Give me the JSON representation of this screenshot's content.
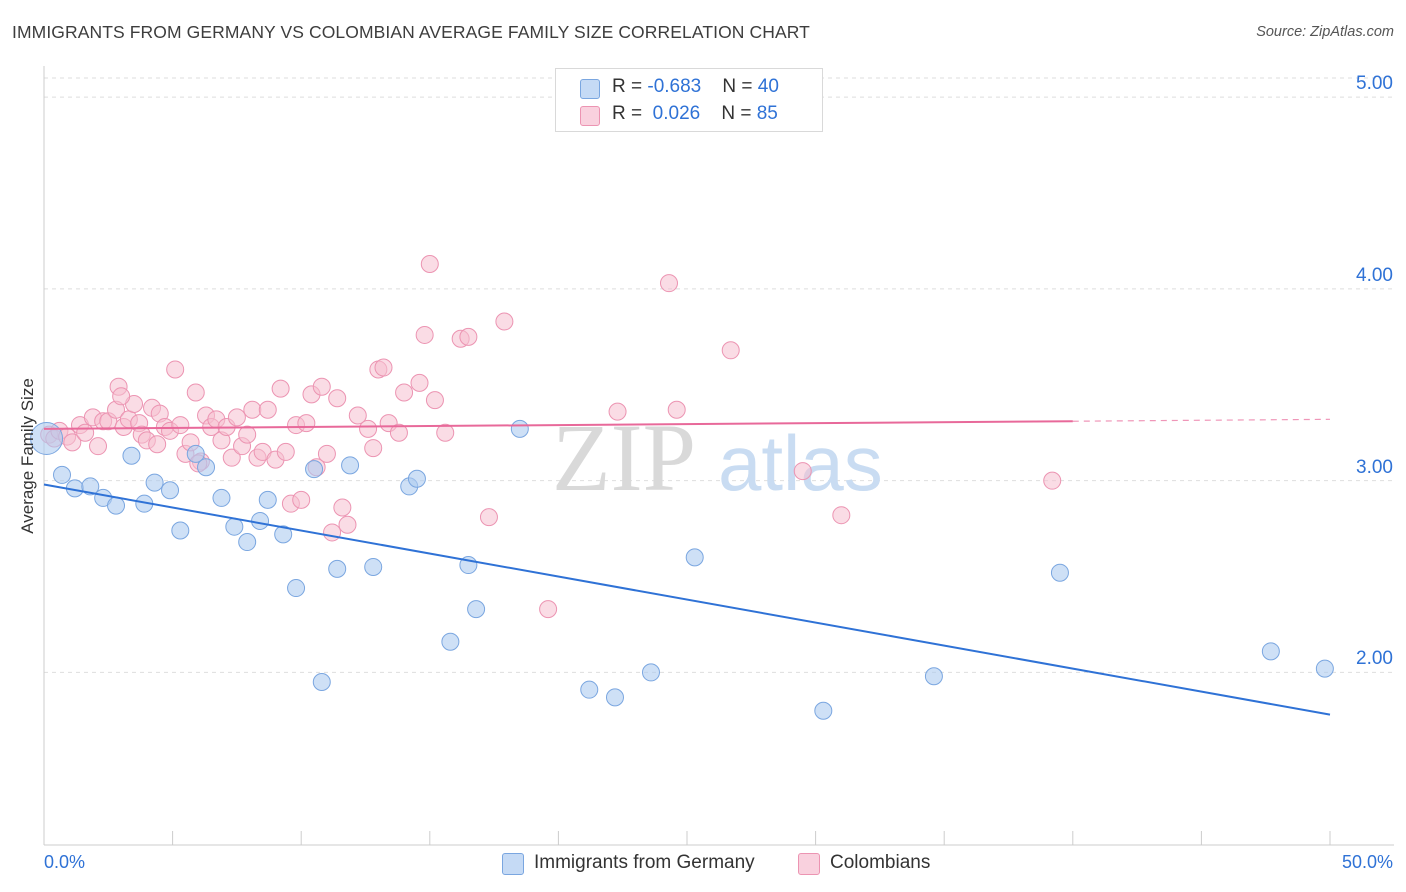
{
  "header": {
    "title": "IMMIGRANTS FROM GERMANY VS COLOMBIAN AVERAGE FAMILY SIZE CORRELATION CHART",
    "source": "Source: ZipAtlas.com"
  },
  "legend": {
    "row1": {
      "r_label": "R = ",
      "r_value": "-0.683",
      "n_label": "N = ",
      "n_value": "40"
    },
    "row2": {
      "r_label": "R = ",
      "r_value": " 0.026",
      "n_label": "N = ",
      "n_value": "85"
    }
  },
  "watermark": {
    "zip": "ZIP",
    "atlas": "atlas"
  },
  "colors": {
    "blue_fill": "#aecbf0",
    "blue_stroke": "#7aa6e0",
    "blue_line": "#2f72d6",
    "pink_fill": "#f6bfd0",
    "pink_stroke": "#ec94b2",
    "pink_line": "#e8699a",
    "grid": "#dedede",
    "axis_text": "#2f72d6"
  },
  "chart_data": {
    "type": "scatter",
    "title": "IMMIGRANTS FROM GERMANY VS COLOMBIAN AVERAGE FAMILY SIZE CORRELATION CHART",
    "xlabel": "",
    "ylabel": "Average Family Size",
    "xlim": [
      0,
      50
    ],
    "ylim": [
      1.1,
      5.1
    ],
    "x_tick_labels": [
      "0.0%",
      "50.0%"
    ],
    "y_ticks": [
      2.0,
      3.0,
      4.0,
      5.0
    ],
    "y_tick_labels": [
      "2.00",
      "3.00",
      "4.00",
      "5.00"
    ],
    "grid": true,
    "legend_position": "top-center",
    "series": [
      {
        "name": "Immigrants from Germany",
        "color": "#aecbf0",
        "r": -0.683,
        "n": 40,
        "trend": {
          "x": [
            0.0,
            50.0
          ],
          "y": [
            2.98,
            1.78
          ]
        },
        "points": [
          {
            "x": 0.1,
            "y": 3.22,
            "big": true
          },
          {
            "x": 0.7,
            "y": 3.03
          },
          {
            "x": 1.2,
            "y": 2.96
          },
          {
            "x": 1.8,
            "y": 2.97
          },
          {
            "x": 2.3,
            "y": 2.91
          },
          {
            "x": 2.8,
            "y": 2.87
          },
          {
            "x": 3.4,
            "y": 3.13
          },
          {
            "x": 3.9,
            "y": 2.88
          },
          {
            "x": 4.3,
            "y": 2.99
          },
          {
            "x": 4.9,
            "y": 2.95
          },
          {
            "x": 5.3,
            "y": 2.74
          },
          {
            "x": 5.9,
            "y": 3.14
          },
          {
            "x": 6.3,
            "y": 3.07
          },
          {
            "x": 6.9,
            "y": 2.91
          },
          {
            "x": 7.4,
            "y": 2.76
          },
          {
            "x": 7.9,
            "y": 2.68
          },
          {
            "x": 8.4,
            "y": 2.79
          },
          {
            "x": 8.7,
            "y": 2.9
          },
          {
            "x": 9.3,
            "y": 2.72
          },
          {
            "x": 9.8,
            "y": 2.44
          },
          {
            "x": 10.5,
            "y": 3.06
          },
          {
            "x": 10.8,
            "y": 1.95
          },
          {
            "x": 11.4,
            "y": 2.54
          },
          {
            "x": 11.9,
            "y": 3.08
          },
          {
            "x": 12.8,
            "y": 2.55
          },
          {
            "x": 14.2,
            "y": 2.97
          },
          {
            "x": 14.5,
            "y": 3.01
          },
          {
            "x": 15.8,
            "y": 2.16
          },
          {
            "x": 16.5,
            "y": 2.56
          },
          {
            "x": 16.8,
            "y": 2.33
          },
          {
            "x": 18.5,
            "y": 3.27
          },
          {
            "x": 21.2,
            "y": 1.91
          },
          {
            "x": 22.2,
            "y": 1.87
          },
          {
            "x": 23.6,
            "y": 2.0
          },
          {
            "x": 25.3,
            "y": 2.6
          },
          {
            "x": 34.6,
            "y": 1.98
          },
          {
            "x": 30.3,
            "y": 1.8
          },
          {
            "x": 39.5,
            "y": 2.52
          },
          {
            "x": 47.7,
            "y": 2.11
          },
          {
            "x": 49.8,
            "y": 2.02
          }
        ]
      },
      {
        "name": "Colombians",
        "color": "#f6bfd0",
        "r": 0.026,
        "n": 85,
        "trend": {
          "x": [
            0.0,
            40.0
          ],
          "y": [
            3.27,
            3.31
          ]
        },
        "trend_dashed_ext": {
          "x": [
            40.0,
            50.0
          ],
          "y": [
            3.31,
            3.32
          ]
        },
        "points": [
          {
            "x": 0.2,
            "y": 3.24
          },
          {
            "x": 0.4,
            "y": 3.22
          },
          {
            "x": 0.6,
            "y": 3.26
          },
          {
            "x": 0.9,
            "y": 3.23
          },
          {
            "x": 1.1,
            "y": 3.2
          },
          {
            "x": 1.4,
            "y": 3.29
          },
          {
            "x": 1.6,
            "y": 3.25
          },
          {
            "x": 1.9,
            "y": 3.33
          },
          {
            "x": 2.1,
            "y": 3.18
          },
          {
            "x": 2.3,
            "y": 3.31
          },
          {
            "x": 2.5,
            "y": 3.31
          },
          {
            "x": 2.8,
            "y": 3.37
          },
          {
            "x": 2.9,
            "y": 3.49
          },
          {
            "x": 3.1,
            "y": 3.28
          },
          {
            "x": 3.3,
            "y": 3.32
          },
          {
            "x": 3.5,
            "y": 3.4
          },
          {
            "x": 3.7,
            "y": 3.3
          },
          {
            "x": 3.8,
            "y": 3.24
          },
          {
            "x": 4.0,
            "y": 3.21
          },
          {
            "x": 4.2,
            "y": 3.38
          },
          {
            "x": 4.4,
            "y": 3.19
          },
          {
            "x": 4.5,
            "y": 3.35
          },
          {
            "x": 4.7,
            "y": 3.28
          },
          {
            "x": 4.9,
            "y": 3.26
          },
          {
            "x": 5.1,
            "y": 3.58
          },
          {
            "x": 5.3,
            "y": 3.29
          },
          {
            "x": 5.5,
            "y": 3.14
          },
          {
            "x": 5.7,
            "y": 3.2
          },
          {
            "x": 5.9,
            "y": 3.46
          },
          {
            "x": 6.1,
            "y": 3.1
          },
          {
            "x": 6.3,
            "y": 3.34
          },
          {
            "x": 6.5,
            "y": 3.28
          },
          {
            "x": 6.7,
            "y": 3.32
          },
          {
            "x": 6.9,
            "y": 3.21
          },
          {
            "x": 7.1,
            "y": 3.28
          },
          {
            "x": 7.3,
            "y": 3.12
          },
          {
            "x": 7.5,
            "y": 3.33
          },
          {
            "x": 7.7,
            "y": 3.18
          },
          {
            "x": 7.9,
            "y": 3.24
          },
          {
            "x": 8.1,
            "y": 3.37
          },
          {
            "x": 8.3,
            "y": 3.12
          },
          {
            "x": 8.5,
            "y": 3.15
          },
          {
            "x": 8.7,
            "y": 3.37
          },
          {
            "x": 9.0,
            "y": 3.11
          },
          {
            "x": 9.2,
            "y": 3.48
          },
          {
            "x": 9.4,
            "y": 3.15
          },
          {
            "x": 9.6,
            "y": 2.88
          },
          {
            "x": 9.8,
            "y": 3.29
          },
          {
            "x": 10.0,
            "y": 2.9
          },
          {
            "x": 10.2,
            "y": 3.3
          },
          {
            "x": 10.4,
            "y": 3.45
          },
          {
            "x": 10.6,
            "y": 3.07
          },
          {
            "x": 10.8,
            "y": 3.49
          },
          {
            "x": 11.0,
            "y": 3.14
          },
          {
            "x": 11.2,
            "y": 2.73
          },
          {
            "x": 11.4,
            "y": 3.43
          },
          {
            "x": 11.6,
            "y": 2.86
          },
          {
            "x": 11.8,
            "y": 2.77
          },
          {
            "x": 12.2,
            "y": 3.34
          },
          {
            "x": 12.6,
            "y": 3.27
          },
          {
            "x": 12.8,
            "y": 3.17
          },
          {
            "x": 13.0,
            "y": 3.58
          },
          {
            "x": 13.2,
            "y": 3.59
          },
          {
            "x": 13.4,
            "y": 3.3
          },
          {
            "x": 13.8,
            "y": 3.25
          },
          {
            "x": 14.0,
            "y": 3.46
          },
          {
            "x": 14.6,
            "y": 3.51
          },
          {
            "x": 14.8,
            "y": 3.76
          },
          {
            "x": 15.0,
            "y": 4.13
          },
          {
            "x": 15.2,
            "y": 3.42
          },
          {
            "x": 15.6,
            "y": 3.25
          },
          {
            "x": 16.2,
            "y": 3.74
          },
          {
            "x": 16.5,
            "y": 3.75
          },
          {
            "x": 17.3,
            "y": 2.81
          },
          {
            "x": 17.9,
            "y": 3.83
          },
          {
            "x": 19.6,
            "y": 2.33
          },
          {
            "x": 22.3,
            "y": 3.36
          },
          {
            "x": 24.3,
            "y": 4.03
          },
          {
            "x": 24.6,
            "y": 3.37
          },
          {
            "x": 26.7,
            "y": 3.68
          },
          {
            "x": 29.5,
            "y": 3.05
          },
          {
            "x": 31.0,
            "y": 2.82
          },
          {
            "x": 39.2,
            "y": 3.0
          },
          {
            "x": 3.0,
            "y": 3.44
          },
          {
            "x": 6.0,
            "y": 3.09
          }
        ]
      }
    ]
  },
  "bottom_legend": {
    "item1": "Immigrants from Germany",
    "item2": "Colombians"
  }
}
